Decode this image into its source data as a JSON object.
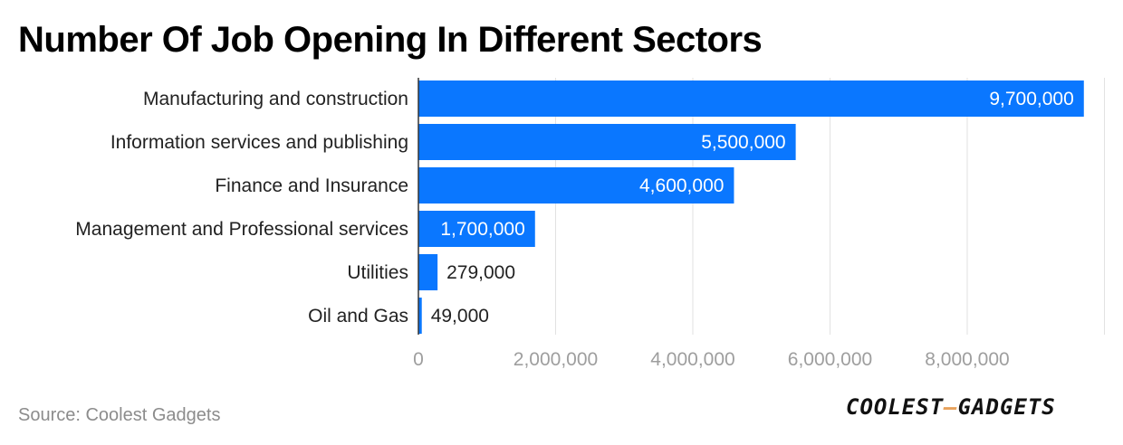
{
  "title": "Number Of Job Opening In Different Sectors",
  "source": "Source: Coolest Gadgets",
  "logo": {
    "left": "COOLEST",
    "dash": "–",
    "right": "GADGETS"
  },
  "colors": {
    "bar": "#0a77ff",
    "inside_label": "#ffffff",
    "outside_label": "#222222",
    "category_label": "#222222",
    "tick_label": "#9e9e9e",
    "grid": "#e2e2e2",
    "axis": "#333333"
  },
  "chart_data": {
    "type": "bar",
    "orientation": "horizontal",
    "title": "Number Of Job Opening In Different Sectors",
    "categories": [
      "Manufacturing and construction",
      "Information services and publishing",
      "Finance and Insurance",
      "Management and Professional services",
      "Utilities",
      "Oil and Gas"
    ],
    "values": [
      9700000,
      5500000,
      4600000,
      1700000,
      279000,
      49000
    ],
    "value_labels": [
      "9,700,000",
      "5,500,000",
      "4,600,000",
      "1,700,000",
      "279,000",
      "49,000"
    ],
    "xlim": [
      0,
      10000000
    ],
    "xticks": [
      0,
      2000000,
      4000000,
      6000000,
      8000000
    ],
    "xtick_labels": [
      "0",
      "2,000,000",
      "4,000,000",
      "6,000,000",
      "8,000,000"
    ],
    "grid": true,
    "xlabel": "",
    "ylabel": ""
  }
}
